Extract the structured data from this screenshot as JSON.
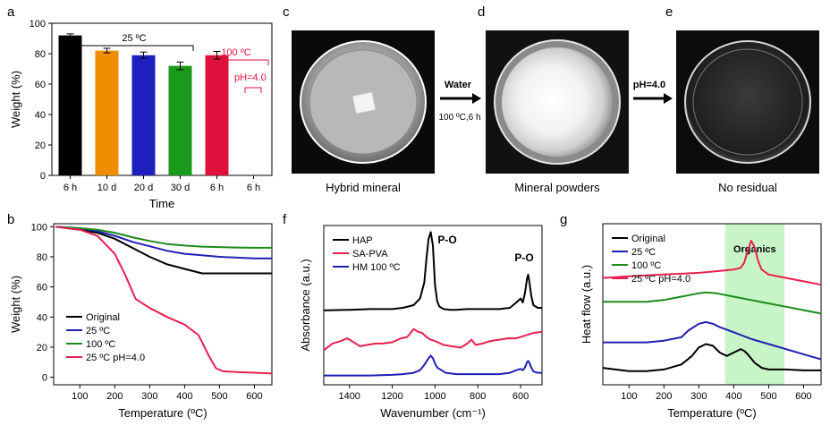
{
  "panels": {
    "a": {
      "letter": "a",
      "chart_ref": 0,
      "group_label_25": "25 ºC",
      "group_label_100": "100 ºC",
      "ph_label": "pH=4.0"
    },
    "b": {
      "letter": "b",
      "chart_ref": 1
    },
    "c": {
      "letter": "c",
      "caption": "Hybrid mineral"
    },
    "d": {
      "letter": "d",
      "caption": "Mineral powders"
    },
    "e": {
      "letter": "e",
      "caption": "No residual"
    },
    "arrow1": {
      "label_top": "Water",
      "label_bottom": "100 ºC,6 h"
    },
    "arrow2": {
      "label_top": "pH=4.0"
    },
    "f": {
      "letter": "f",
      "chart_ref": 2,
      "peak1": "P-O",
      "peak2": "P-O"
    },
    "g": {
      "letter": "g",
      "chart_ref": 3,
      "band_label": "Organics"
    }
  },
  "colors": {
    "black": "#000000",
    "blue": "#1f1fb4",
    "green": "#1c8a1c",
    "red": "#e8204f",
    "orange": "#f08c00",
    "bar_blue": "#1f1fbf",
    "bar_green": "#1a9a1a",
    "bar_red": "#e0103c",
    "organics_band": "#c8f5c8",
    "tick_red": "#e0103c"
  },
  "chart_data": [
    {
      "type": "bar",
      "panel": "a",
      "categories": [
        "6 h",
        "10 d",
        "20 d",
        "30 d",
        "6 h",
        "6 h"
      ],
      "values": [
        92,
        82,
        79,
        72,
        79,
        0
      ],
      "errors": [
        1,
        1.5,
        2,
        2.5,
        2.5,
        0
      ],
      "bar_colors": [
        "#000000",
        "#f08c00",
        "#1f1fbf",
        "#1a9a1a",
        "#e0103c",
        null
      ],
      "xlabel": "Time",
      "ylabel": "Weight (%)",
      "ylim": [
        0,
        100
      ],
      "yticks": [
        0,
        20,
        40,
        60,
        80,
        100
      ]
    },
    {
      "type": "line",
      "panel": "b",
      "xlabel": "Temperature (ºC)",
      "ylabel": "Weight (%)",
      "xlim": [
        25,
        650
      ],
      "ylim": [
        -5,
        102
      ],
      "xticks": [
        100,
        200,
        300,
        400,
        500,
        600
      ],
      "yticks": [
        0,
        20,
        40,
        60,
        80,
        100
      ],
      "legend_position": "bottom-left",
      "series": [
        {
          "name": "Original",
          "color": "#000000",
          "x": [
            30,
            100,
            150,
            200,
            250,
            300,
            350,
            400,
            450,
            500,
            550,
            600,
            650
          ],
          "y": [
            100,
            98,
            96,
            92,
            86,
            80,
            75,
            72,
            69,
            69,
            69,
            69,
            69
          ]
        },
        {
          "name": "25 ºC",
          "color": "#1f1fb4",
          "x": [
            30,
            100,
            150,
            200,
            250,
            300,
            350,
            400,
            450,
            500,
            550,
            600,
            650
          ],
          "y": [
            100,
            99,
            97,
            94,
            90,
            87,
            84,
            82,
            81,
            80,
            79.5,
            79,
            79
          ]
        },
        {
          "name": "100 ºC",
          "color": "#1c8a1c",
          "x": [
            30,
            100,
            150,
            200,
            250,
            300,
            350,
            400,
            450,
            500,
            550,
            600,
            650
          ],
          "y": [
            100,
            99,
            98,
            96,
            93,
            90.5,
            88.5,
            87.5,
            86.8,
            86.5,
            86.2,
            86,
            86
          ]
        },
        {
          "name": "25 ºC pH=4.0",
          "color": "#e8204f",
          "x": [
            30,
            100,
            150,
            200,
            230,
            260,
            300,
            350,
            400,
            440,
            470,
            490,
            510,
            550,
            600,
            650
          ],
          "y": [
            100,
            98,
            94,
            82,
            68,
            52,
            46,
            40,
            35,
            28,
            14,
            6,
            4,
            3.5,
            3,
            2.5
          ]
        }
      ]
    },
    {
      "type": "line",
      "panel": "f",
      "xlabel": "Wavenumber (cm⁻¹)",
      "ylabel": "Absorbance (a.u.)",
      "xlim": [
        1520,
        500
      ],
      "xticks": [
        1400,
        1200,
        1000,
        800,
        600
      ],
      "legend_position": "top-left",
      "series": [
        {
          "name": "HAP",
          "color": "#000000",
          "x": [
            1520,
            1400,
            1300,
            1200,
            1150,
            1100,
            1070,
            1050,
            1040,
            1030,
            1020,
            1010,
            1000,
            990,
            980,
            960,
            930,
            900,
            850,
            800,
            700,
            650,
            620,
            600,
            590,
            580,
            570,
            565,
            560,
            550,
            540,
            520,
            500
          ],
          "y": [
            51,
            51.5,
            52,
            52,
            53,
            55,
            60,
            72,
            90,
            105,
            110,
            100,
            70,
            58,
            54,
            52,
            51.5,
            51.5,
            52,
            52,
            52,
            53,
            57,
            60,
            57,
            64,
            75,
            78,
            74,
            62,
            55,
            53,
            53
          ]
        },
        {
          "name": "SA-PVA",
          "color": "#e8204f",
          "x": [
            1520,
            1480,
            1440,
            1410,
            1380,
            1350,
            1320,
            1280,
            1250,
            1200,
            1160,
            1130,
            1100,
            1080,
            1060,
            1040,
            1020,
            1000,
            960,
            920,
            880,
            850,
            830,
            810,
            780,
            740,
            700,
            660,
            620,
            580,
            540,
            500
          ],
          "y": [
            21,
            26,
            28,
            30,
            27,
            24,
            25,
            26,
            26,
            27,
            30,
            31,
            37,
            35,
            34,
            31,
            29,
            28,
            25,
            24,
            23,
            26,
            29,
            25,
            26,
            28,
            29,
            30,
            30,
            32,
            34,
            35
          ]
        },
        {
          "name": "HM 100 ºC",
          "color": "#1f1fb4",
          "x": [
            1520,
            1400,
            1300,
            1200,
            1150,
            1100,
            1070,
            1050,
            1030,
            1020,
            1010,
            1000,
            990,
            970,
            950,
            900,
            850,
            800,
            700,
            650,
            620,
            600,
            590,
            580,
            570,
            565,
            560,
            550,
            540,
            520,
            500
          ],
          "y": [
            2,
            2,
            2,
            2.5,
            3,
            4,
            6,
            10,
            15,
            17,
            15,
            11,
            8,
            6,
            4,
            3,
            3,
            3,
            3,
            4,
            6,
            7,
            6,
            8,
            12,
            13,
            12,
            8,
            5,
            4,
            4
          ]
        }
      ]
    },
    {
      "type": "line",
      "panel": "g",
      "xlabel": "Temperature (ºC)",
      "ylabel": "Heat flow (a.u.)",
      "xlim": [
        25,
        650
      ],
      "xticks": [
        100,
        200,
        300,
        400,
        500,
        600
      ],
      "band": [
        375,
        545
      ],
      "legend_position": "top-left",
      "series": [
        {
          "name": "Original",
          "color": "#000000",
          "x": [
            25,
            100,
            150,
            200,
            250,
            280,
            300,
            320,
            340,
            360,
            380,
            400,
            420,
            430,
            440,
            460,
            480,
            500,
            550,
            600,
            650
          ],
          "y": [
            5,
            3,
            3,
            4,
            7,
            12,
            17,
            19,
            18,
            14,
            12,
            14,
            16,
            15,
            13,
            8,
            5,
            4,
            4,
            3.5,
            3.5
          ]
        },
        {
          "name": "25 ºC",
          "color": "#1f1fb4",
          "x": [
            25,
            100,
            150,
            200,
            250,
            270,
            300,
            320,
            340,
            360,
            400,
            450,
            500,
            550,
            600,
            650
          ],
          "y": [
            20,
            20,
            20,
            21,
            23,
            27,
            31,
            32,
            31,
            29,
            26,
            22,
            19,
            16,
            13,
            10
          ]
        },
        {
          "name": "100 ºC",
          "color": "#1c8a1c",
          "x": [
            25,
            100,
            150,
            200,
            250,
            300,
            320,
            350,
            400,
            450,
            500,
            550,
            600,
            650
          ],
          "y": [
            44,
            44,
            44,
            45,
            47,
            49,
            49.5,
            49,
            47,
            45,
            43,
            41,
            39,
            37
          ]
        },
        {
          "name": "25 ºC pH=4.0",
          "color": "#e8204f",
          "x": [
            25,
            100,
            200,
            300,
            350,
            400,
            420,
            430,
            440,
            450,
            460,
            470,
            480,
            500,
            550,
            600,
            650
          ],
          "y": [
            58,
            59,
            60,
            61,
            62,
            63,
            64,
            67,
            74,
            80,
            76,
            68,
            63,
            60,
            58,
            56,
            54
          ]
        }
      ]
    }
  ]
}
